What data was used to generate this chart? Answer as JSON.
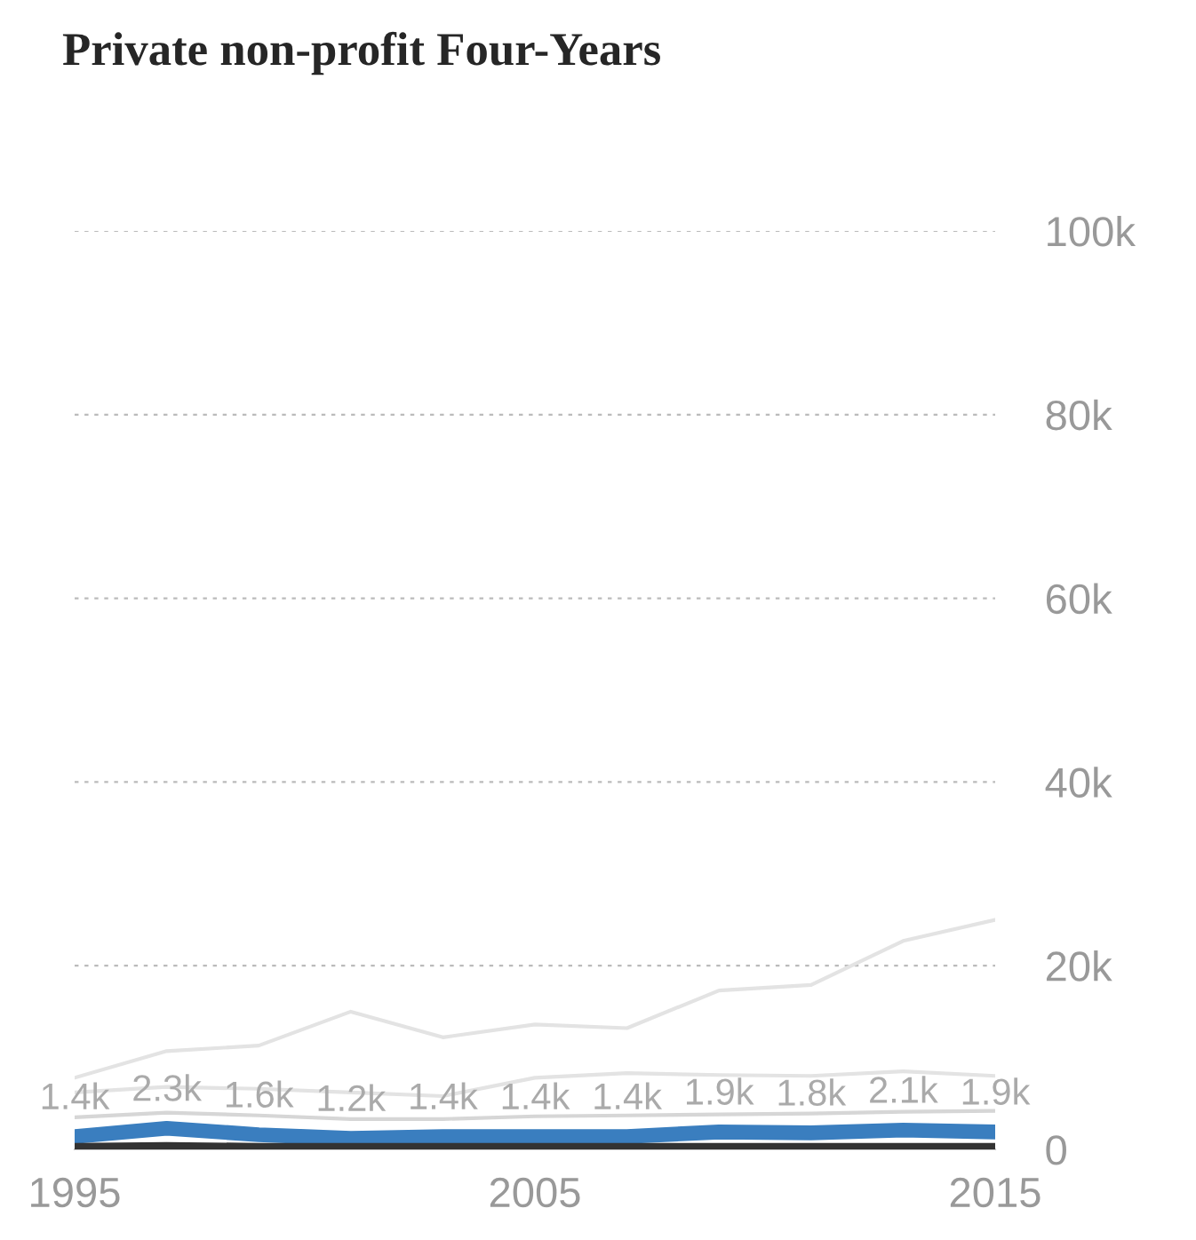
{
  "chart_data": {
    "type": "line",
    "title": "Private non-profit Four-Years",
    "x": [
      1995,
      1997,
      1999,
      2001,
      2003,
      2005,
      2007,
      2009,
      2011,
      2013,
      2015
    ],
    "series": [
      {
        "color": "#e3e3e3",
        "values": [
          7800,
          10700,
          11300,
          15000,
          12200,
          13600,
          13200,
          17300,
          17900,
          22700,
          25000
        ]
      },
      {
        "color": "#e3e3e3",
        "values": [
          6200,
          6800,
          6600,
          6200,
          5800,
          7800,
          8300,
          8100,
          8000,
          8500,
          8000
        ]
      },
      {
        "color": "#d6d6d6",
        "values": [
          3500,
          4000,
          3700,
          3300,
          3300,
          3600,
          3700,
          3800,
          3900,
          4100,
          4200
        ]
      },
      {
        "color": "#3a7ebf",
        "values": [
          1400,
          2300,
          1600,
          1200,
          1400,
          1400,
          1400,
          1900,
          1800,
          2100,
          1900
        ],
        "value_labels": [
          "1.4k",
          "2.3k",
          "1.6k",
          "1.2k",
          "1.4k",
          "1.4k",
          "1.4k",
          "1.9k",
          "1.8k",
          "2.1k",
          "1.9k"
        ]
      },
      {
        "color": "#333333",
        "values": [
          300,
          400,
          300,
          300,
          300,
          300,
          300,
          300,
          300,
          300,
          300
        ]
      }
    ],
    "xlim": [
      1995,
      2015
    ],
    "xticks": [
      1995,
      2005,
      2015
    ],
    "ylim": [
      0,
      100000
    ],
    "yticks": [
      0,
      {
        "value": 20000,
        "label": "20k"
      },
      {
        "value": 40000,
        "label": "40k"
      },
      {
        "value": 60000,
        "label": "60k"
      },
      {
        "value": 80000,
        "label": "80k"
      },
      {
        "value": 100000,
        "label": "100k"
      }
    ],
    "grid": "y",
    "legend": false,
    "marker": "none",
    "line_style": "solid"
  }
}
